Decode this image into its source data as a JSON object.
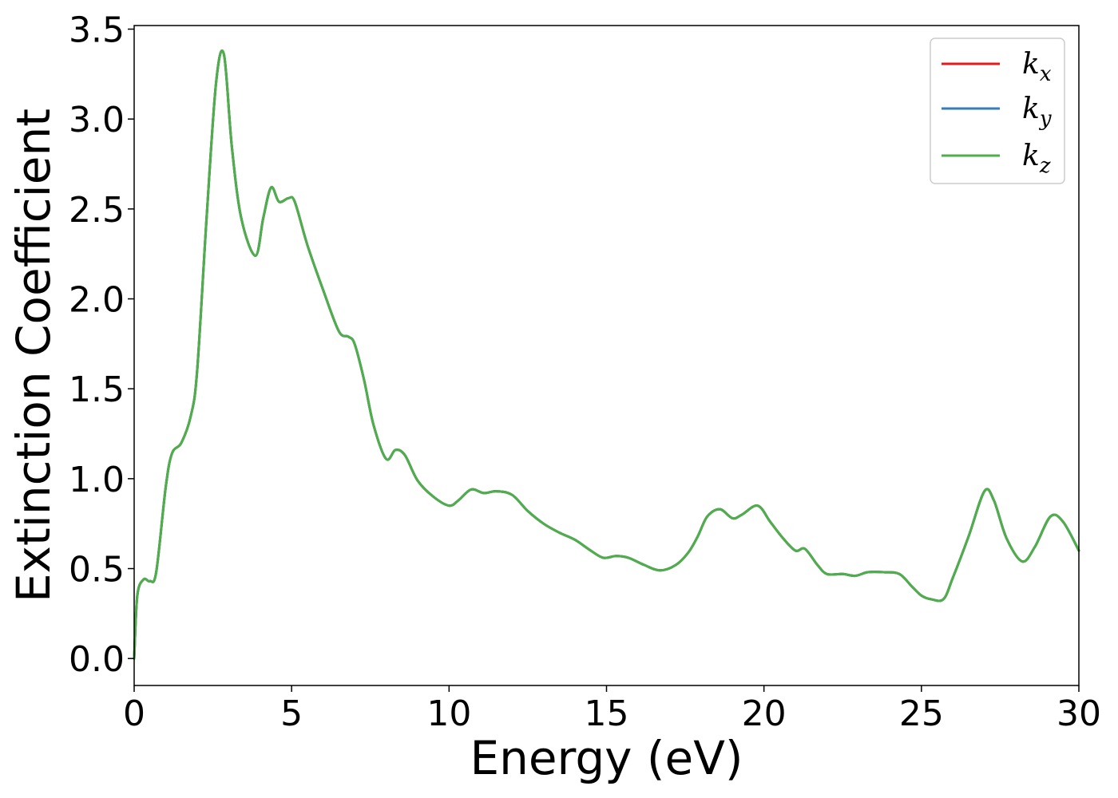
{
  "chart_data": {
    "type": "line",
    "title": "",
    "xlabel": "Energy (eV)",
    "ylabel": "Extinction Coefficient",
    "xlim": [
      0,
      30
    ],
    "ylim": [
      -0.15,
      3.52
    ],
    "xticks": [
      0,
      5,
      10,
      15,
      20,
      25,
      30
    ],
    "yticks": [
      0.0,
      0.5,
      1.0,
      1.5,
      2.0,
      2.5,
      3.0,
      3.5
    ],
    "xtick_labels": [
      "0",
      "5",
      "10",
      "15",
      "20",
      "25",
      "30"
    ],
    "ytick_labels": [
      "0.0",
      "0.5",
      "1.0",
      "1.5",
      "2.0",
      "2.5",
      "3.0",
      "3.5"
    ],
    "grid": false,
    "legend_position": "top-right",
    "x": [
      0,
      0.1,
      0.3,
      0.5,
      0.7,
      1.0,
      1.2,
      1.5,
      1.8,
      2.0,
      2.3,
      2.6,
      2.85,
      3.1,
      3.4,
      3.85,
      4.1,
      4.35,
      4.6,
      4.9,
      5.1,
      5.5,
      6.0,
      6.5,
      6.8,
      7.0,
      7.3,
      7.6,
      8.0,
      8.3,
      8.6,
      9.0,
      9.5,
      10.0,
      10.3,
      10.7,
      11.1,
      11.5,
      12.0,
      12.5,
      13.0,
      13.5,
      14.0,
      14.5,
      14.9,
      15.3,
      15.7,
      16.2,
      16.7,
      17.2,
      17.6,
      17.9,
      18.2,
      18.6,
      19.0,
      19.3,
      19.8,
      20.2,
      20.6,
      21.0,
      21.3,
      21.7,
      22.0,
      22.5,
      22.9,
      23.3,
      23.8,
      24.3,
      24.7,
      25.0,
      25.3,
      25.7,
      26.0,
      26.5,
      27.0,
      27.3,
      27.7,
      28.2,
      28.6,
      29.1,
      29.5,
      30.0
    ],
    "series": [
      {
        "name": "k_x",
        "name_base": "k",
        "name_sub": "x",
        "color": "#e41a1c",
        "y": [
          0.0,
          0.35,
          0.44,
          0.43,
          0.48,
          0.95,
          1.14,
          1.2,
          1.35,
          1.6,
          2.45,
          3.2,
          3.36,
          2.85,
          2.45,
          2.24,
          2.45,
          2.62,
          2.54,
          2.56,
          2.54,
          2.3,
          2.05,
          1.82,
          1.79,
          1.75,
          1.55,
          1.3,
          1.11,
          1.16,
          1.13,
          0.99,
          0.9,
          0.85,
          0.88,
          0.94,
          0.92,
          0.93,
          0.91,
          0.82,
          0.75,
          0.7,
          0.66,
          0.6,
          0.56,
          0.57,
          0.56,
          0.52,
          0.49,
          0.52,
          0.59,
          0.68,
          0.79,
          0.83,
          0.78,
          0.8,
          0.85,
          0.76,
          0.67,
          0.6,
          0.61,
          0.52,
          0.47,
          0.47,
          0.46,
          0.48,
          0.48,
          0.47,
          0.4,
          0.35,
          0.33,
          0.33,
          0.45,
          0.68,
          0.93,
          0.88,
          0.67,
          0.54,
          0.62,
          0.79,
          0.76,
          0.6
        ]
      },
      {
        "name": "k_y",
        "name_base": "k",
        "name_sub": "y",
        "color": "#377eb8",
        "y": [
          0.0,
          0.35,
          0.44,
          0.43,
          0.48,
          0.95,
          1.14,
          1.2,
          1.35,
          1.6,
          2.45,
          3.2,
          3.36,
          2.85,
          2.45,
          2.24,
          2.45,
          2.62,
          2.54,
          2.56,
          2.54,
          2.3,
          2.05,
          1.82,
          1.79,
          1.75,
          1.55,
          1.3,
          1.11,
          1.16,
          1.13,
          0.99,
          0.9,
          0.85,
          0.88,
          0.94,
          0.92,
          0.93,
          0.91,
          0.82,
          0.75,
          0.7,
          0.66,
          0.6,
          0.56,
          0.57,
          0.56,
          0.52,
          0.49,
          0.52,
          0.59,
          0.68,
          0.79,
          0.83,
          0.78,
          0.8,
          0.85,
          0.76,
          0.67,
          0.6,
          0.61,
          0.52,
          0.47,
          0.47,
          0.46,
          0.48,
          0.48,
          0.47,
          0.4,
          0.35,
          0.33,
          0.33,
          0.45,
          0.68,
          0.93,
          0.88,
          0.67,
          0.54,
          0.62,
          0.79,
          0.76,
          0.6
        ]
      },
      {
        "name": "k_z",
        "name_base": "k",
        "name_sub": "z",
        "color": "#4daf4a",
        "y": [
          0.0,
          0.35,
          0.44,
          0.43,
          0.48,
          0.95,
          1.14,
          1.2,
          1.35,
          1.6,
          2.45,
          3.2,
          3.36,
          2.85,
          2.45,
          2.24,
          2.45,
          2.62,
          2.54,
          2.56,
          2.54,
          2.3,
          2.05,
          1.82,
          1.79,
          1.75,
          1.55,
          1.3,
          1.11,
          1.16,
          1.13,
          0.99,
          0.9,
          0.85,
          0.88,
          0.94,
          0.92,
          0.93,
          0.91,
          0.82,
          0.75,
          0.7,
          0.66,
          0.6,
          0.56,
          0.57,
          0.56,
          0.52,
          0.49,
          0.52,
          0.59,
          0.68,
          0.79,
          0.83,
          0.78,
          0.8,
          0.85,
          0.76,
          0.67,
          0.6,
          0.61,
          0.52,
          0.47,
          0.47,
          0.46,
          0.48,
          0.48,
          0.47,
          0.4,
          0.35,
          0.33,
          0.33,
          0.45,
          0.68,
          0.93,
          0.88,
          0.67,
          0.54,
          0.62,
          0.79,
          0.76,
          0.6
        ]
      }
    ]
  }
}
